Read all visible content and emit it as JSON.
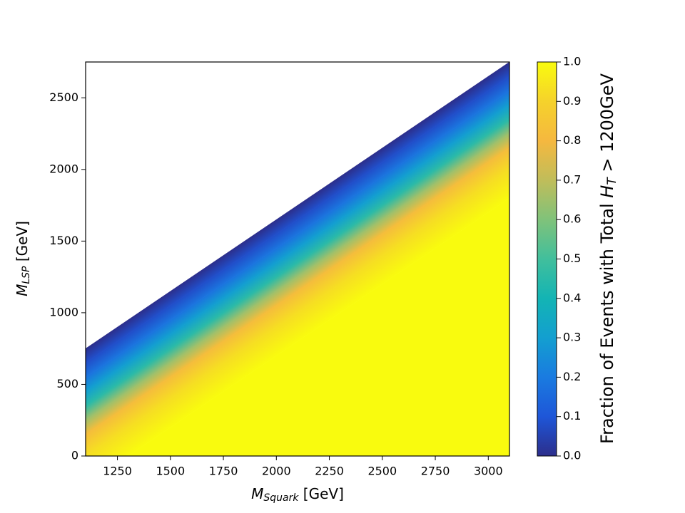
{
  "chart_data": {
    "type": "contour",
    "xlabel": [
      "M",
      "Squark",
      " [GeV]"
    ],
    "ylabel": [
      "M",
      "LSP",
      " [GeV]"
    ],
    "xlim": [
      1100,
      3100
    ],
    "xticks": [
      1250,
      1500,
      1750,
      2000,
      2250,
      2500,
      2750,
      3000
    ],
    "ylim": [
      0,
      2750
    ],
    "yticks": [
      0,
      500,
      1000,
      1500,
      2000,
      2500
    ],
    "profile": {
      "mass_difference": [
        350,
        450,
        550,
        650,
        750,
        850,
        950,
        1100,
        1300
      ],
      "fraction": [
        0,
        0.08,
        0.18,
        0.3,
        0.45,
        0.65,
        0.82,
        0.93,
        1.0
      ]
    },
    "colormap": [
      "#2c2e8b",
      "#1e56d8",
      "#1a7be0",
      "#139fd0",
      "#13b4b4",
      "#41bf9c",
      "#80c27a",
      "#c0bd5a",
      "#f5b83f",
      "#f5d22b",
      "#f9fb0e"
    ],
    "colorbar": {
      "label": [
        "Fraction of Events with Total ",
        "H",
        "T",
        " > 1200GeV"
      ],
      "lim": [
        0,
        1
      ],
      "ticks": [
        {
          "value": 0,
          "label": "0.0"
        },
        {
          "value": 0.1,
          "label": "0.1"
        },
        {
          "value": 0.2,
          "label": "0.2"
        },
        {
          "value": 0.3,
          "label": "0.3"
        },
        {
          "value": 0.4,
          "label": "0.4"
        },
        {
          "value": 0.5,
          "label": "0.5"
        },
        {
          "value": 0.6,
          "label": "0.6"
        },
        {
          "value": 0.7,
          "label": "0.7"
        },
        {
          "value": 0.8,
          "label": "0.8"
        },
        {
          "value": 0.9,
          "label": "0.9"
        },
        {
          "value": 1,
          "label": "1.0"
        }
      ]
    }
  }
}
